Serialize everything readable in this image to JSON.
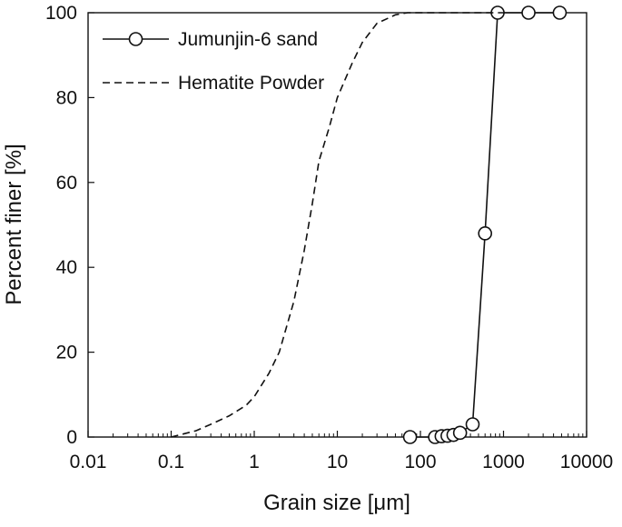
{
  "chart_data": {
    "type": "line",
    "title": "",
    "xlabel": "Grain size [μm]",
    "ylabel": "Percent finer [%]",
    "xscale": "log",
    "xlim": [
      0.01,
      10000
    ],
    "ylim": [
      0,
      100
    ],
    "xticks": [
      "0.01",
      "0.1",
      "1",
      "10",
      "100",
      "1000",
      "10000"
    ],
    "yticks": [
      "0",
      "20",
      "40",
      "60",
      "80",
      "100"
    ],
    "grid": false,
    "legend_position": "top-left",
    "series": [
      {
        "name": "Jumunjin-6 sand",
        "style": "solid-with-circle-markers",
        "color": "#111111",
        "x": [
          75,
          150,
          180,
          212,
          250,
          300,
          425,
          600,
          850,
          2000,
          4750
        ],
        "y": [
          0,
          0,
          0.2,
          0.3,
          0.5,
          1,
          3,
          48,
          100,
          100,
          100
        ]
      },
      {
        "name": "Hematite Powder",
        "style": "dashed",
        "color": "#111111",
        "x": [
          0.1,
          0.2,
          0.3,
          0.5,
          0.8,
          1,
          1.5,
          2,
          3,
          4,
          5,
          6,
          8,
          10,
          15,
          20,
          30,
          50,
          70,
          100,
          200,
          1000
        ],
        "y": [
          0,
          1.5,
          3,
          5,
          7.5,
          9.5,
          15,
          20,
          32,
          44,
          55,
          65,
          73,
          80,
          88,
          93,
          97.5,
          99.5,
          100,
          100,
          100,
          100
        ]
      }
    ]
  }
}
